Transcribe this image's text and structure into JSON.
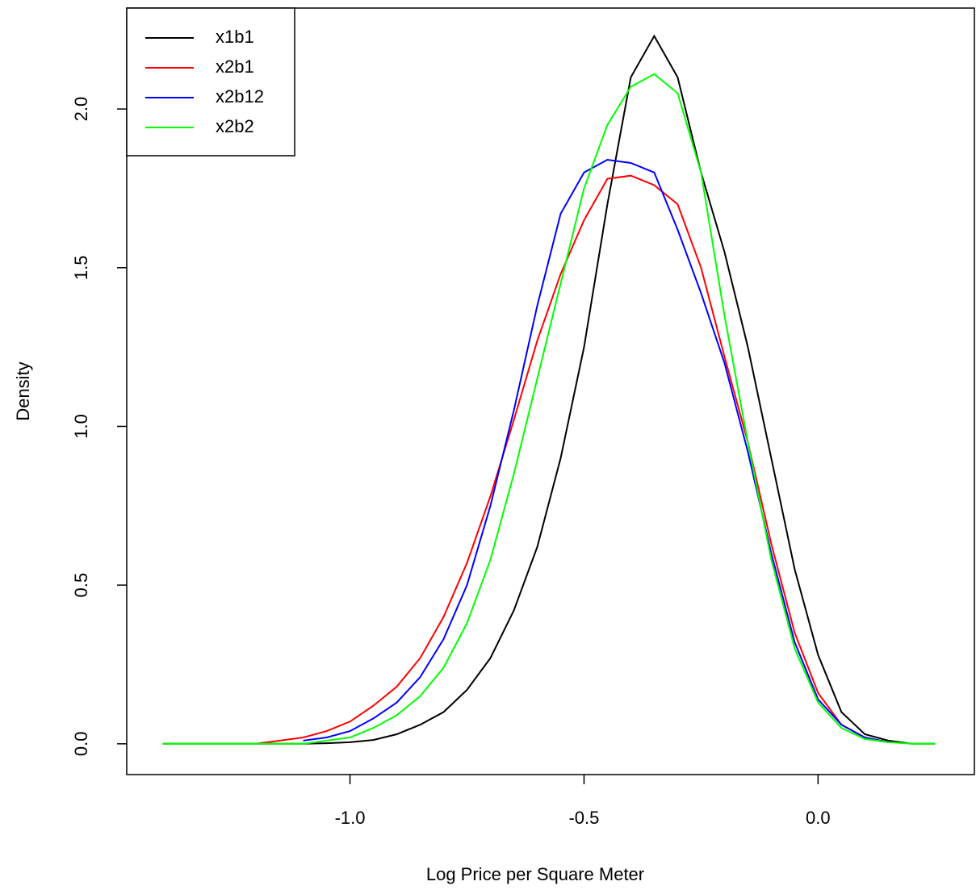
{
  "chart_data": {
    "type": "line",
    "xlabel": "Log Price per Square Meter",
    "ylabel": "Density",
    "x": [
      -1.4,
      -1.35,
      -1.3,
      -1.25,
      -1.2,
      -1.15,
      -1.1,
      -1.05,
      -1.0,
      -0.95,
      -0.9,
      -0.85,
      -0.8,
      -0.75,
      -0.7,
      -0.65,
      -0.6,
      -0.55,
      -0.5,
      -0.45,
      -0.4,
      -0.35,
      -0.3,
      -0.25,
      -0.2,
      -0.15,
      -0.1,
      -0.05,
      0.0,
      0.05,
      0.1,
      0.15,
      0.2,
      0.25
    ],
    "series": [
      {
        "name": "x1b1",
        "color": "#000000",
        "values": [
          0,
          0,
          0,
          0,
          0,
          0,
          0,
          0.002,
          0.005,
          0.012,
          0.03,
          0.06,
          0.1,
          0.17,
          0.27,
          0.42,
          0.62,
          0.9,
          1.25,
          1.7,
          2.1,
          2.23,
          2.1,
          1.8,
          1.55,
          1.25,
          0.9,
          0.55,
          0.28,
          0.1,
          0.03,
          0.01,
          0,
          0
        ]
      },
      {
        "name": "x2b1",
        "color": "#ff0000",
        "values": [
          null,
          null,
          null,
          null,
          0,
          0.01,
          0.02,
          0.04,
          0.07,
          0.12,
          0.18,
          0.27,
          0.4,
          0.57,
          0.78,
          1.02,
          1.27,
          1.48,
          1.65,
          1.78,
          1.79,
          1.76,
          1.7,
          1.5,
          1.22,
          0.95,
          0.63,
          0.35,
          0.16,
          0.06,
          0.02,
          0.005,
          null,
          null
        ]
      },
      {
        "name": "x2b12",
        "color": "#0000ff",
        "values": [
          null,
          null,
          null,
          null,
          null,
          null,
          0.01,
          0.02,
          0.04,
          0.08,
          0.13,
          0.21,
          0.33,
          0.5,
          0.75,
          1.05,
          1.38,
          1.67,
          1.8,
          1.84,
          1.83,
          1.8,
          1.62,
          1.42,
          1.2,
          0.92,
          0.6,
          0.32,
          0.14,
          0.06,
          0.02,
          0.005,
          null,
          null
        ]
      },
      {
        "name": "x2b2",
        "color": "#00ff00",
        "values": [
          0,
          0,
          0,
          0,
          0,
          0,
          0,
          0.01,
          0.02,
          0.05,
          0.09,
          0.15,
          0.24,
          0.38,
          0.58,
          0.85,
          1.15,
          1.45,
          1.75,
          1.95,
          2.07,
          2.11,
          2.05,
          1.8,
          1.35,
          0.95,
          0.58,
          0.3,
          0.13,
          0.05,
          0.015,
          0.005,
          0,
          0
        ]
      }
    ],
    "xlim": [
      -1.477,
      0.334
    ],
    "ylim": [
      -0.097,
      2.318
    ],
    "xticks": [
      {
        "value": -1.0,
        "label": "-1.0"
      },
      {
        "value": -0.5,
        "label": "-0.5"
      },
      {
        "value": 0,
        "label": "0.0"
      }
    ],
    "yticks": [
      {
        "value": 0,
        "label": "0.0"
      },
      {
        "value": 0.5,
        "label": "0.5"
      },
      {
        "value": 1.0,
        "label": "1.0"
      },
      {
        "value": 1.5,
        "label": "1.5"
      },
      {
        "value": 2.0,
        "label": "2.0"
      }
    ],
    "legend": "top-left"
  }
}
